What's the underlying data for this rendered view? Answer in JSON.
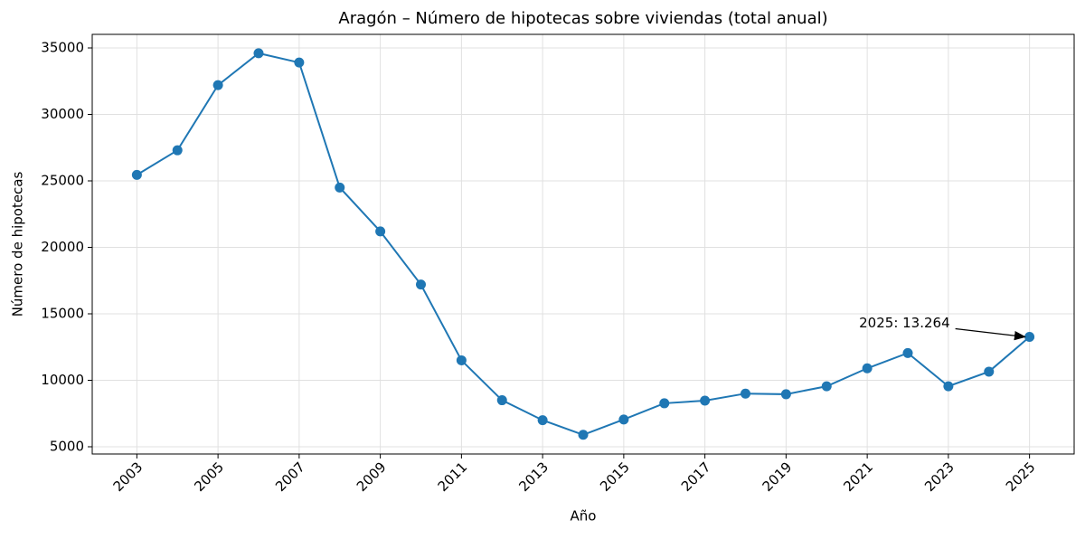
{
  "chart_data": {
    "type": "line",
    "title": "Aragón – Número de hipotecas sobre viviendas (total anual)",
    "x_label": "Año",
    "y_label": "Número de hipotecas",
    "x": [
      2003,
      2004,
      2005,
      2006,
      2007,
      2008,
      2009,
      2010,
      2011,
      2012,
      2013,
      2014,
      2015,
      2016,
      2017,
      2018,
      2019,
      2020,
      2021,
      2022,
      2023,
      2024,
      2025
    ],
    "series": [
      {
        "name": "Hipotecas",
        "color": "#1f77b4",
        "values": [
          25450,
          27300,
          32200,
          34600,
          33900,
          24500,
          21200,
          17200,
          11500,
          8500,
          7000,
          5900,
          7050,
          8270,
          8470,
          9000,
          8950,
          9550,
          10900,
          12050,
          9550,
          10650,
          13264
        ]
      }
    ],
    "annotation": "2025: 13.264",
    "xlim": [
      2001.9,
      2026.1
    ],
    "ylim": [
      4456,
      36020
    ],
    "xticks": [
      2003,
      2005,
      2007,
      2009,
      2011,
      2013,
      2015,
      2017,
      2019,
      2021,
      2023,
      2025
    ],
    "yticks": [
      5000,
      10000,
      15000,
      20000,
      25000,
      30000,
      35000
    ],
    "grid": true
  }
}
